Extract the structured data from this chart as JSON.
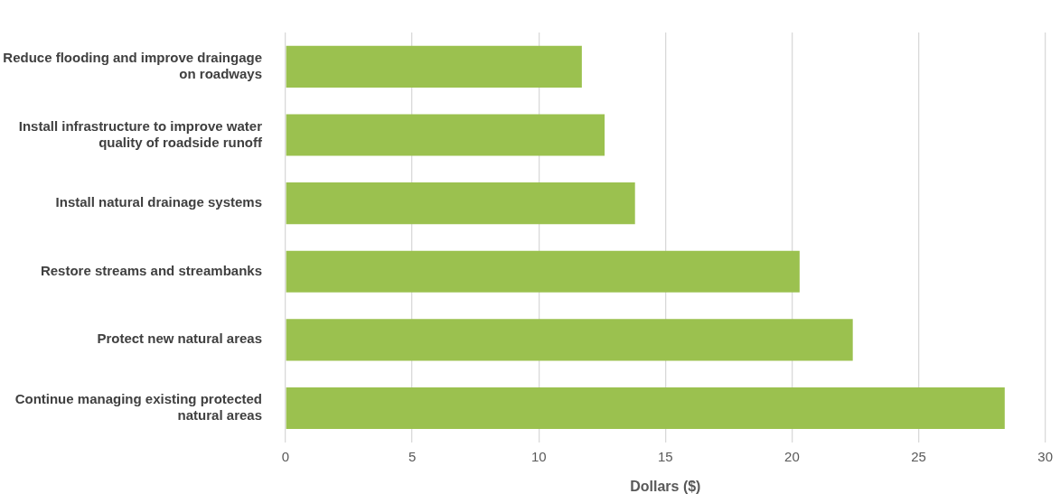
{
  "chart_data": {
    "type": "bar",
    "orientation": "horizontal",
    "xlabel": "Dollars ($)",
    "categories": [
      "Reduce flooding and improve draingage on roadways",
      "Install infrastructure to improve water quality of roadside runoff",
      "Install natural drainage systems",
      "Restore streams and streambanks",
      "Protect new natural areas",
      "Continue managing existing protected natural areas"
    ],
    "values": [
      11.7,
      12.6,
      13.8,
      20.3,
      22.4,
      28.4
    ],
    "color": "#9bc14f",
    "xlim": [
      0,
      30
    ],
    "xticks": [
      0,
      5,
      10,
      15,
      20,
      25,
      30
    ],
    "grid": "x",
    "legend": false
  }
}
